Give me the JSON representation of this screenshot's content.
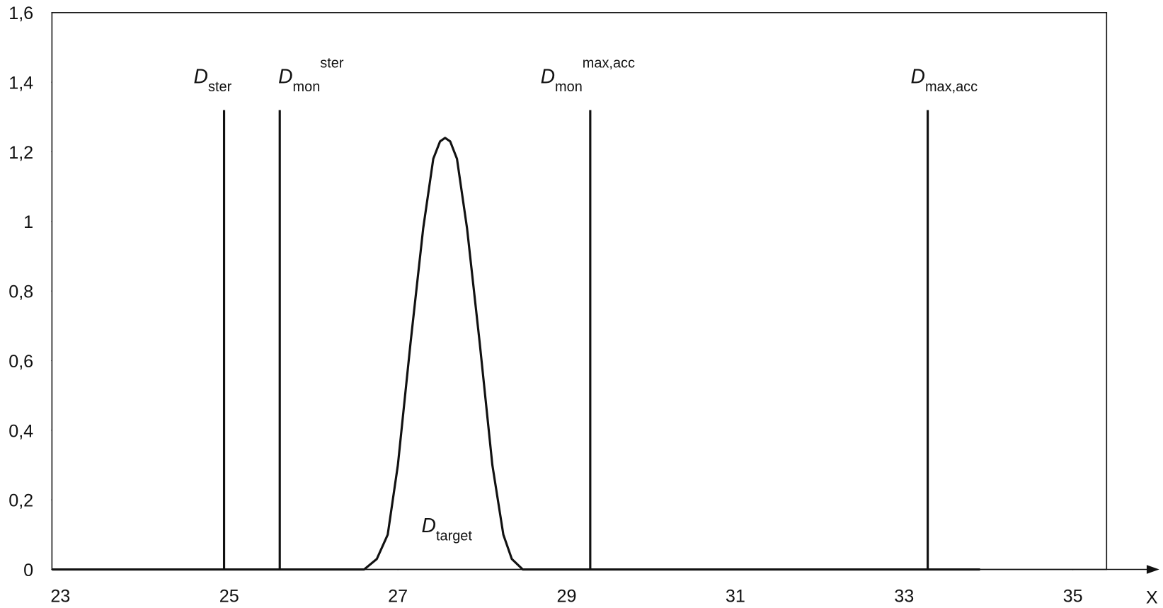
{
  "chart_data": {
    "type": "line",
    "x_label": "X",
    "xlim": [
      22.9,
      35.4
    ],
    "ylim": [
      0,
      1.6
    ],
    "xticks": [
      23,
      25,
      27,
      29,
      31,
      33,
      35
    ],
    "yticks": [
      0,
      {
        "value": 0.2,
        "label": "0,2"
      },
      {
        "value": 0.4,
        "label": "0,4"
      },
      {
        "value": 0.6,
        "label": "0,6"
      },
      {
        "value": 0.8,
        "label": "0,8"
      },
      1,
      {
        "value": 1.2,
        "label": "1,2"
      },
      {
        "value": 1.4,
        "label": "1,4"
      },
      {
        "value": 1.6,
        "label": "1,6"
      }
    ],
    "series": [
      {
        "color": "#111111",
        "x": [
          22.9,
          26.6,
          26.75,
          26.88,
          27.0,
          27.15,
          27.3,
          27.42,
          27.5,
          27.56,
          27.62,
          27.7,
          27.82,
          27.97,
          28.12,
          28.25,
          28.35,
          28.48,
          33.9
        ],
        "values": [
          0,
          0,
          0.03,
          0.1,
          0.3,
          0.65,
          0.98,
          1.18,
          1.23,
          1.24,
          1.23,
          1.18,
          0.98,
          0.65,
          0.3,
          0.1,
          0.03,
          0,
          0
        ],
        "label": {
          "main": "D",
          "sub": "target"
        }
      }
    ],
    "markers": [
      {
        "x": 24.94,
        "height": 1.32,
        "label": {
          "main": "D",
          "sub": "ster"
        }
      },
      {
        "x": 25.6,
        "height": 1.32,
        "label": {
          "main": "D",
          "sub": "mon",
          "sup": "ster"
        }
      },
      {
        "x": 29.28,
        "height": 1.32,
        "label": {
          "main": "D",
          "sub": "mon",
          "sup": "max,acc"
        }
      },
      {
        "x": 33.28,
        "height": 1.32,
        "label": {
          "main": "D",
          "sub": "max,acc"
        }
      }
    ]
  }
}
